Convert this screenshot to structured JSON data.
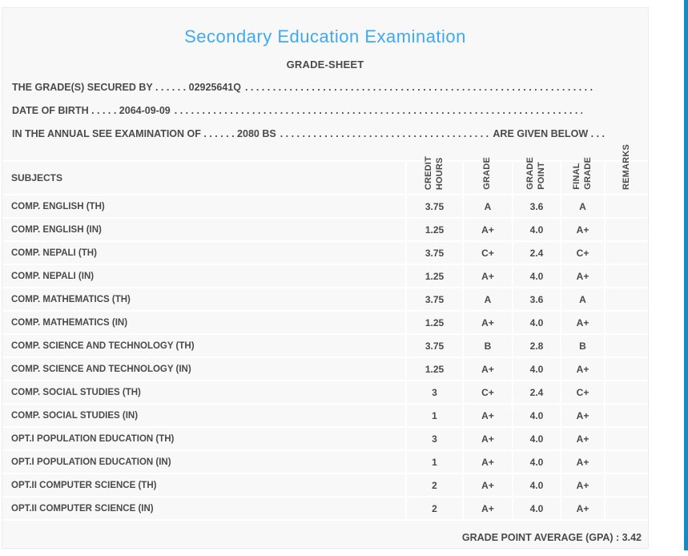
{
  "header": {
    "title": "Secondary Education Examination",
    "subtitle": "GRADE-SHEET"
  },
  "info_lines": [
    {
      "prefix": "THE GRADE(S) SECURED BY . . . . . . 02925641Q",
      "suffix": ""
    },
    {
      "prefix": "DATE OF BIRTH . . . . . 2064-09-09",
      "suffix": ""
    },
    {
      "prefix": "IN THE ANNUAL SEE EXAMINATION OF . . . . . . 2080 BS",
      "suffix": "ARE GIVEN BELOW . . ."
    }
  ],
  "leader_dots": ". . . . . . . . . . . . . . . . . . . . . . . . . . . . . . . . . . . . . . . . . . . . . . . . . . . . . . . . . . . . . . . . . . . . . . . . . . . . . . . . . . . . . . . . . . . . . . . . . . . .",
  "table": {
    "subjects_header": "SUBJECTS",
    "columns": [
      "CREDIT\nHOURS",
      "GRADE",
      "GRADE\nPOINT",
      "FINAL\nGRADE",
      "REMARKS"
    ],
    "rows": [
      {
        "subject": "COMP. ENGLISH (TH)",
        "credit_hours": "3.75",
        "grade": "A",
        "grade_point": "3.6",
        "final_grade": "A",
        "remarks": ""
      },
      {
        "subject": "COMP. ENGLISH (IN)",
        "credit_hours": "1.25",
        "grade": "A+",
        "grade_point": "4.0",
        "final_grade": "A+",
        "remarks": ""
      },
      {
        "subject": "COMP. NEPALI (TH)",
        "credit_hours": "3.75",
        "grade": "C+",
        "grade_point": "2.4",
        "final_grade": "C+",
        "remarks": ""
      },
      {
        "subject": "COMP. NEPALI (IN)",
        "credit_hours": "1.25",
        "grade": "A+",
        "grade_point": "4.0",
        "final_grade": "A+",
        "remarks": ""
      },
      {
        "subject": "COMP. MATHEMATICS (TH)",
        "credit_hours": "3.75",
        "grade": "A",
        "grade_point": "3.6",
        "final_grade": "A",
        "remarks": ""
      },
      {
        "subject": "COMP. MATHEMATICS (IN)",
        "credit_hours": "1.25",
        "grade": "A+",
        "grade_point": "4.0",
        "final_grade": "A+",
        "remarks": ""
      },
      {
        "subject": "COMP. SCIENCE AND TECHNOLOGY (TH)",
        "credit_hours": "3.75",
        "grade": "B",
        "grade_point": "2.8",
        "final_grade": "B",
        "remarks": ""
      },
      {
        "subject": "COMP. SCIENCE AND TECHNOLOGY (IN)",
        "credit_hours": "1.25",
        "grade": "A+",
        "grade_point": "4.0",
        "final_grade": "A+",
        "remarks": ""
      },
      {
        "subject": "COMP. SOCIAL STUDIES (TH)",
        "credit_hours": "3",
        "grade": "C+",
        "grade_point": "2.4",
        "final_grade": "C+",
        "remarks": ""
      },
      {
        "subject": "COMP. SOCIAL STUDIES (IN)",
        "credit_hours": "1",
        "grade": "A+",
        "grade_point": "4.0",
        "final_grade": "A+",
        "remarks": ""
      },
      {
        "subject": "OPT.I POPULATION EDUCATION (TH)",
        "credit_hours": "3",
        "grade": "A+",
        "grade_point": "4.0",
        "final_grade": "A+",
        "remarks": ""
      },
      {
        "subject": "OPT.I POPULATION EDUCATION (IN)",
        "credit_hours": "1",
        "grade": "A+",
        "grade_point": "4.0",
        "final_grade": "A+",
        "remarks": ""
      },
      {
        "subject": "OPT.II COMPUTER SCIENCE (TH)",
        "credit_hours": "2",
        "grade": "A+",
        "grade_point": "4.0",
        "final_grade": "A+",
        "remarks": ""
      },
      {
        "subject": "OPT.II COMPUTER SCIENCE (IN)",
        "credit_hours": "2",
        "grade": "A+",
        "grade_point": "4.0",
        "final_grade": "A+",
        "remarks": ""
      }
    ]
  },
  "summary": {
    "gpa_label": "GRADE POINT AVERAGE (GPA) : 3.42"
  },
  "colors": {
    "title_blue": "#3fa9f5",
    "scrollbar_blue": "#0d8fc5",
    "text": "#4a4a4a",
    "card_background": "#f8f8f8",
    "separator": "#ffffff"
  }
}
